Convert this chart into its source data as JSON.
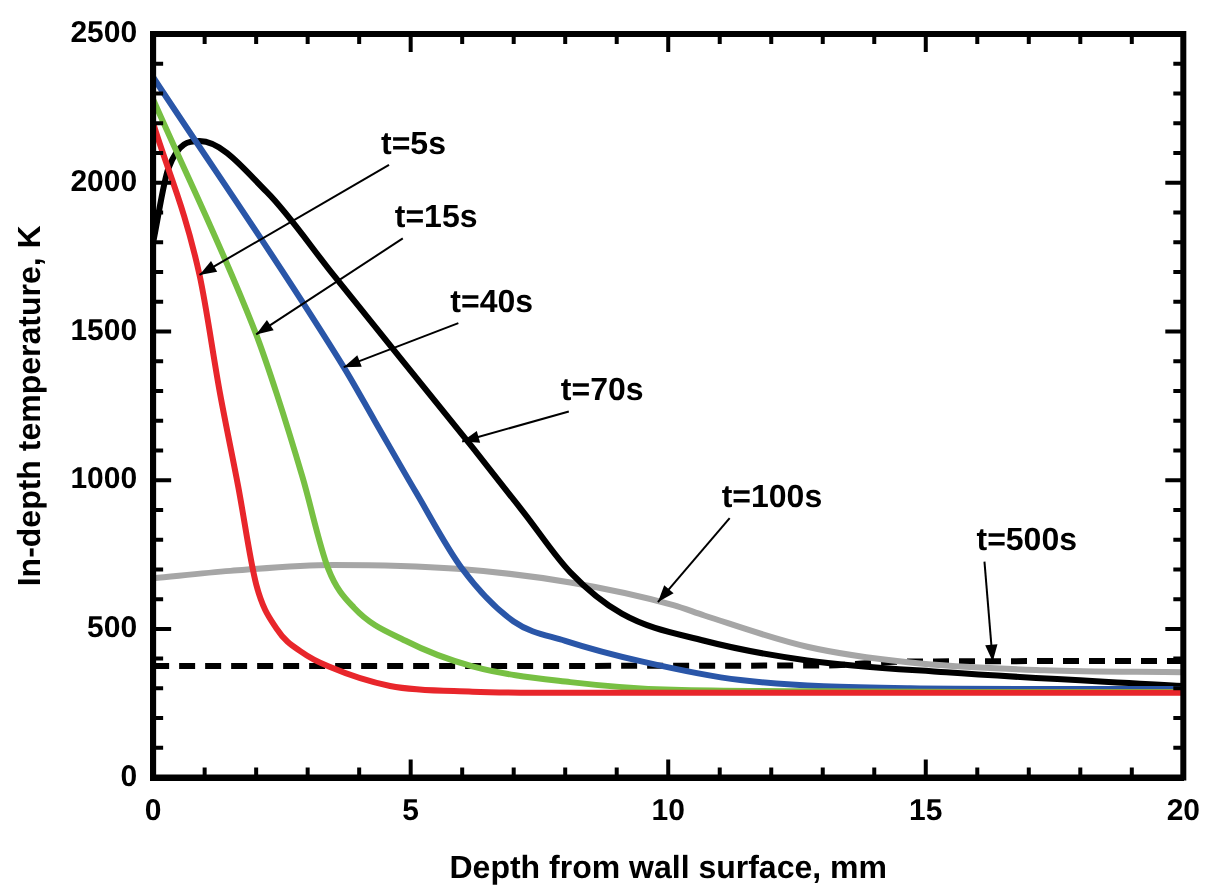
{
  "chart_data": {
    "type": "line",
    "xlabel": "Depth from wall surface, mm",
    "ylabel": "In-depth temperature, K",
    "xlim": [
      0,
      20
    ],
    "ylim": [
      0,
      2500
    ],
    "xticks": [
      0,
      {
        "value": 1,
        "label": null
      },
      {
        "value": 2,
        "label": null
      },
      {
        "value": 3,
        "label": null
      },
      {
        "value": 4,
        "label": null
      },
      5,
      {
        "value": 6,
        "label": null
      },
      {
        "value": 7,
        "label": null
      },
      {
        "value": 8,
        "label": null
      },
      {
        "value": 9,
        "label": null
      },
      10,
      {
        "value": 11,
        "label": null
      },
      {
        "value": 12,
        "label": null
      },
      {
        "value": 13,
        "label": null
      },
      {
        "value": 14,
        "label": null
      },
      15,
      {
        "value": 16,
        "label": null
      },
      {
        "value": 17,
        "label": null
      },
      {
        "value": 18,
        "label": null
      },
      {
        "value": 19,
        "label": null
      },
      20
    ],
    "yticks": [
      0,
      {
        "value": 100,
        "label": null
      },
      {
        "value": 200,
        "label": null
      },
      {
        "value": 300,
        "label": null
      },
      {
        "value": 400,
        "label": null
      },
      500,
      {
        "value": 600,
        "label": null
      },
      {
        "value": 700,
        "label": null
      },
      {
        "value": 800,
        "label": null
      },
      {
        "value": 900,
        "label": null
      },
      1000,
      {
        "value": 1100,
        "label": null
      },
      {
        "value": 1200,
        "label": null
      },
      {
        "value": 1300,
        "label": null
      },
      {
        "value": 1400,
        "label": null
      },
      1500,
      {
        "value": 1600,
        "label": null
      },
      {
        "value": 1700,
        "label": null
      },
      {
        "value": 1800,
        "label": null
      },
      {
        "value": 1900,
        "label": null
      },
      2000,
      {
        "value": 2100,
        "label": null
      },
      {
        "value": 2200,
        "label": null
      },
      {
        "value": 2300,
        "label": null
      },
      {
        "value": 2400,
        "label": null
      },
      2500
    ],
    "marker": "none",
    "line_style": "solid",
    "series": [
      {
        "color": "#e8262b",
        "x": [
          0,
          0.9,
          1.3,
          1.65,
          2.0,
          2.4,
          2.9,
          3.4,
          4.6,
          6.2,
          8,
          11,
          15,
          20
        ],
        "values": [
          2200,
          1690,
          1290,
          980,
          650,
          500,
          420,
          374,
          308,
          289,
          285,
          285,
          285,
          285
        ]
      },
      {
        "color": "#77c043",
        "x": [
          0,
          2.0,
          2.4,
          2.9,
          3.4,
          3.9,
          4.9,
          6.2,
          8.1,
          10.1,
          13,
          16,
          20
        ],
        "values": [
          2280,
          1490,
          1290,
          1010,
          702,
          571,
          460,
          374,
          321,
          295,
          290,
          288,
          288
        ]
      },
      {
        "color": "#2a56a8",
        "x": [
          0,
          3.7,
          4.3,
          5.1,
          6.0,
          7.0,
          8.0,
          9.5,
          11.4,
          14.7,
          17,
          20
        ],
        "values": [
          2355,
          1380,
          1200,
          960,
          702,
          525,
          460,
          390,
          328,
          300,
          298,
          298
        ]
      },
      {
        "color": "#000000",
        "x": [
          0,
          0.3,
          0.9,
          2.2,
          3.5,
          4.8,
          6.2,
          7.2,
          8.1,
          9.1,
          10.7,
          12.7,
          15.4,
          20
        ],
        "values": [
          1800,
          2050,
          2140,
          1970,
          1690,
          1410,
          1110,
          890,
          690,
          551,
          460,
          394,
          354,
          308
        ]
      },
      {
        "color": "#a6a6a6",
        "x": [
          0,
          1.5,
          3.5,
          5.9,
          8.1,
          10.1,
          10.7,
          12.7,
          14.7,
          17.3,
          20
        ],
        "values": [
          670,
          695,
          715,
          702,
          656,
          580,
          545,
          440,
          387,
          361,
          354
        ]
      },
      {
        "color": "#000000",
        "line_style": "dashed",
        "x": [
          0,
          13,
          14.5,
          20
        ],
        "values": [
          375,
          377,
          390,
          392
        ]
      }
    ],
    "annotations": [
      {
        "text": "t=5s",
        "x": 0.9,
        "y": 1690
      },
      {
        "text": "t=15s",
        "x": 2.0,
        "y": 1490
      },
      {
        "text": "t=40s",
        "x": 3.7,
        "y": 1380
      },
      {
        "text": "t=70s",
        "x": 6.0,
        "y": 1130
      },
      {
        "text": "t=100s",
        "x": 9.8,
        "y": 590
      },
      {
        "text": "t=500s",
        "x": 16.3,
        "y": 390
      }
    ]
  }
}
